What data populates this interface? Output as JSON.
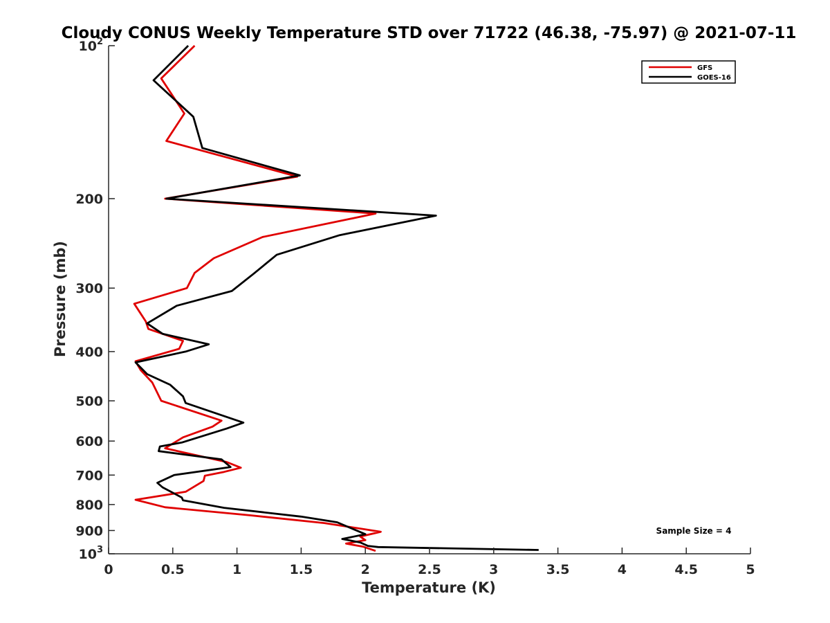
{
  "chart_data": {
    "type": "line",
    "title": "Cloudy CONUS Weekly Temperature STD over 71722 (46.38, -75.97) @ 2021-07-11",
    "xlabel": "Temperature (K)",
    "ylabel": "Pressure (mb)",
    "xlim": [
      0,
      5
    ],
    "ylim": [
      100,
      1000
    ],
    "yscale": "log",
    "yreversed": false,
    "x_ticks": [
      {
        "value": 0,
        "label": "0"
      },
      {
        "value": 0.5,
        "label": "0.5"
      },
      {
        "value": 1,
        "label": "1"
      },
      {
        "value": 1.5,
        "label": "1.5"
      },
      {
        "value": 2,
        "label": "2"
      },
      {
        "value": 2.5,
        "label": "2.5"
      },
      {
        "value": 3,
        "label": "3"
      },
      {
        "value": 3.5,
        "label": "3.5"
      },
      {
        "value": 4,
        "label": "4"
      },
      {
        "value": 4.5,
        "label": "4.5"
      },
      {
        "value": 5,
        "label": "5"
      }
    ],
    "y_ticks": [
      {
        "value": 100,
        "base": "10",
        "exp": "2"
      },
      {
        "value": 200,
        "base": "200",
        "exp": ""
      },
      {
        "value": 300,
        "base": "300",
        "exp": ""
      },
      {
        "value": 400,
        "base": "400",
        "exp": ""
      },
      {
        "value": 500,
        "base": "500",
        "exp": ""
      },
      {
        "value": 600,
        "base": "600",
        "exp": ""
      },
      {
        "value": 700,
        "base": "700",
        "exp": ""
      },
      {
        "value": 800,
        "base": "800",
        "exp": ""
      },
      {
        "value": 900,
        "base": "900",
        "exp": ""
      },
      {
        "value": 1000,
        "base": "10",
        "exp": "3"
      }
    ],
    "legend_position": "top-right",
    "annotation": "Sample Size = 4",
    "series": [
      {
        "name": "GFS",
        "color": "#e00000",
        "points": [
          [
            0.67,
            100
          ],
          [
            0.41,
            116
          ],
          [
            0.59,
            136
          ],
          [
            0.45,
            154
          ],
          [
            1.47,
            181
          ],
          [
            0.44,
            200
          ],
          [
            2.08,
            214
          ],
          [
            1.2,
            238
          ],
          [
            0.82,
            262
          ],
          [
            0.67,
            280
          ],
          [
            0.61,
            300
          ],
          [
            0.2,
            322
          ],
          [
            0.29,
            349
          ],
          [
            0.31,
            361
          ],
          [
            0.58,
            381
          ],
          [
            0.55,
            395
          ],
          [
            0.21,
            418
          ],
          [
            0.25,
            435
          ],
          [
            0.34,
            460
          ],
          [
            0.41,
            500
          ],
          [
            0.88,
            547
          ],
          [
            0.81,
            562
          ],
          [
            0.58,
            590
          ],
          [
            0.44,
            620
          ],
          [
            0.92,
            660
          ],
          [
            1.03,
            677
          ],
          [
            0.9,
            690
          ],
          [
            0.75,
            702
          ],
          [
            0.74,
            719
          ],
          [
            0.6,
            755
          ],
          [
            0.21,
            783
          ],
          [
            0.44,
            810
          ],
          [
            1.1,
            840
          ],
          [
            1.68,
            870
          ],
          [
            2.12,
            905
          ],
          [
            1.96,
            925
          ],
          [
            2.0,
            940
          ],
          [
            1.85,
            955
          ],
          [
            1.98,
            968
          ],
          [
            2.08,
            987
          ]
        ]
      },
      {
        "name": "GOES-16",
        "color": "#000000",
        "points": [
          [
            0.62,
            100
          ],
          [
            0.35,
            117
          ],
          [
            0.66,
            138
          ],
          [
            0.73,
            159
          ],
          [
            1.49,
            180
          ],
          [
            0.45,
            200
          ],
          [
            2.55,
            216
          ],
          [
            1.8,
            236
          ],
          [
            1.31,
            258
          ],
          [
            1.13,
            281
          ],
          [
            0.96,
            304
          ],
          [
            0.53,
            325
          ],
          [
            0.3,
            352
          ],
          [
            0.42,
            369
          ],
          [
            0.78,
            387
          ],
          [
            0.6,
            400
          ],
          [
            0.21,
            420
          ],
          [
            0.3,
            443
          ],
          [
            0.48,
            465
          ],
          [
            0.58,
            490
          ],
          [
            0.6,
            505
          ],
          [
            1.05,
            552
          ],
          [
            0.92,
            567
          ],
          [
            0.57,
            604
          ],
          [
            0.4,
            615
          ],
          [
            0.39,
            628
          ],
          [
            0.88,
            652
          ],
          [
            0.95,
            675
          ],
          [
            0.51,
            700
          ],
          [
            0.38,
            725
          ],
          [
            0.42,
            740
          ],
          [
            0.57,
            775
          ],
          [
            0.58,
            785
          ],
          [
            0.9,
            812
          ],
          [
            1.5,
            845
          ],
          [
            1.78,
            867
          ],
          [
            2.0,
            915
          ],
          [
            1.82,
            935
          ],
          [
            1.96,
            950
          ],
          [
            2.02,
            965
          ],
          [
            2.1,
            970
          ],
          [
            3.35,
            983
          ]
        ]
      }
    ]
  }
}
